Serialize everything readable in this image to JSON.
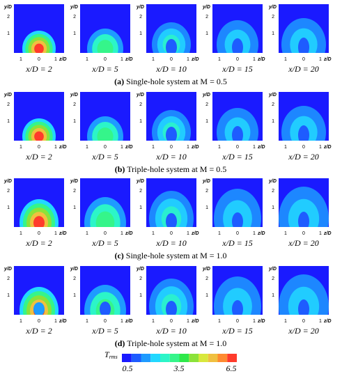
{
  "axis": {
    "y_label": "y/D",
    "y_ticks": [
      "1",
      "2"
    ],
    "x_ticks": [
      "1",
      "0",
      "1"
    ],
    "x_label": "z/D"
  },
  "rows": [
    {
      "label": "(a)",
      "text": "Single-hole system at M = 0.5",
      "panels": [
        "x/D = 2",
        "x/D = 5",
        "x/D = 10",
        "x/D = 15",
        "x/D = 20"
      ]
    },
    {
      "label": "(b)",
      "text": "Triple-hole system at M = 0.5",
      "panels": [
        "x/D = 2",
        "x/D = 5",
        "x/D = 10",
        "x/D = 15",
        "x/D = 20"
      ]
    },
    {
      "label": "(c)",
      "text": "Single-hole system at M = 1.0",
      "panels": [
        "x/D = 2",
        "x/D = 5",
        "x/D = 10",
        "x/D = 15",
        "x/D = 20"
      ]
    },
    {
      "label": "(d)",
      "text": "Triple-hole system at M = 1.0",
      "panels": [
        "x/D = 2",
        "x/D = 5",
        "x/D = 10",
        "x/D = 15",
        "x/D = 20"
      ]
    }
  ],
  "colorbar": {
    "symbol": "T",
    "subscript": "rms",
    "ticks": [
      "0.5",
      "3.5",
      "6.5"
    ]
  }
}
